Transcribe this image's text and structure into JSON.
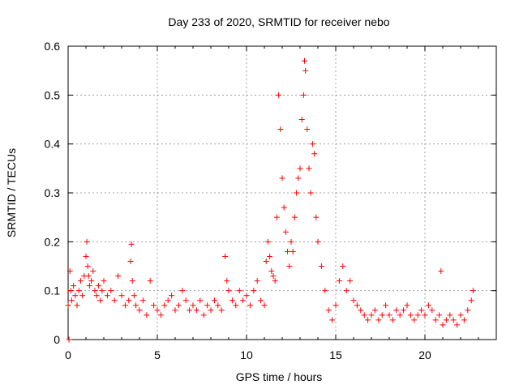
{
  "chart_data": {
    "type": "scatter",
    "title": "Day 233 of 2020, SRMTID for receiver nebo",
    "xlabel": "GPS time / hours",
    "ylabel": "SRMTID / TECUs",
    "xlim": [
      0,
      24
    ],
    "ylim": [
      0,
      0.6
    ],
    "xticks": [
      0,
      5,
      10,
      15,
      20
    ],
    "yticks": [
      0,
      0.1,
      0.2,
      0.3,
      0.4,
      0.5,
      0.6
    ],
    "grid": true,
    "marker": "+",
    "series": [
      {
        "name": "SRMTID",
        "color": "#ff0000",
        "x": [
          0.0,
          0.05,
          0.1,
          0.15,
          0.2,
          0.3,
          0.4,
          0.5,
          0.6,
          0.7,
          0.8,
          0.9,
          1.0,
          1.05,
          1.1,
          1.15,
          1.2,
          1.3,
          1.4,
          1.5,
          1.6,
          1.7,
          1.8,
          1.9,
          2.0,
          2.2,
          2.4,
          2.6,
          2.8,
          3.0,
          3.2,
          3.4,
          3.5,
          3.55,
          3.6,
          3.7,
          3.8,
          4.0,
          4.2,
          4.4,
          4.6,
          4.8,
          5.0,
          5.2,
          5.4,
          5.6,
          5.8,
          6.0,
          6.2,
          6.4,
          6.6,
          6.8,
          7.0,
          7.2,
          7.4,
          7.6,
          7.8,
          8.0,
          8.2,
          8.4,
          8.6,
          8.8,
          8.9,
          9.0,
          9.2,
          9.4,
          9.6,
          9.8,
          10.0,
          10.2,
          10.4,
          10.6,
          10.8,
          11.0,
          11.1,
          11.2,
          11.3,
          11.4,
          11.5,
          11.6,
          11.7,
          11.8,
          11.9,
          12.0,
          12.1,
          12.2,
          12.3,
          12.4,
          12.5,
          12.6,
          12.7,
          12.8,
          12.9,
          13.0,
          13.1,
          13.2,
          13.25,
          13.3,
          13.4,
          13.5,
          13.6,
          13.7,
          13.8,
          13.9,
          14.0,
          14.2,
          14.4,
          14.6,
          14.8,
          15.0,
          15.2,
          15.4,
          15.6,
          15.8,
          16.0,
          16.2,
          16.4,
          16.6,
          16.8,
          17.0,
          17.2,
          17.4,
          17.6,
          17.8,
          18.0,
          18.2,
          18.4,
          18.6,
          18.8,
          19.0,
          19.2,
          19.4,
          19.6,
          19.8,
          20.0,
          20.2,
          20.4,
          20.6,
          20.8,
          20.9,
          21.0,
          21.2,
          21.4,
          21.6,
          21.8,
          22.0,
          22.2,
          22.4,
          22.6,
          22.7
        ],
        "y": [
          0.07,
          0.0,
          0.14,
          0.1,
          0.08,
          0.11,
          0.09,
          0.07,
          0.1,
          0.12,
          0.09,
          0.13,
          0.17,
          0.2,
          0.15,
          0.13,
          0.11,
          0.12,
          0.14,
          0.1,
          0.09,
          0.11,
          0.08,
          0.1,
          0.12,
          0.09,
          0.1,
          0.08,
          0.13,
          0.09,
          0.07,
          0.08,
          0.16,
          0.195,
          0.12,
          0.09,
          0.07,
          0.06,
          0.08,
          0.05,
          0.12,
          0.07,
          0.06,
          0.05,
          0.07,
          0.08,
          0.09,
          0.06,
          0.07,
          0.1,
          0.08,
          0.06,
          0.07,
          0.06,
          0.08,
          0.05,
          0.07,
          0.06,
          0.08,
          0.07,
          0.06,
          0.17,
          0.12,
          0.1,
          0.08,
          0.07,
          0.1,
          0.08,
          0.09,
          0.07,
          0.1,
          0.12,
          0.08,
          0.07,
          0.16,
          0.2,
          0.17,
          0.14,
          0.13,
          0.12,
          0.25,
          0.5,
          0.43,
          0.33,
          0.27,
          0.22,
          0.18,
          0.15,
          0.2,
          0.18,
          0.25,
          0.3,
          0.33,
          0.35,
          0.45,
          0.5,
          0.57,
          0.55,
          0.43,
          0.35,
          0.3,
          0.4,
          0.38,
          0.25,
          0.2,
          0.15,
          0.1,
          0.06,
          0.04,
          0.07,
          0.12,
          0.15,
          0.1,
          0.12,
          0.08,
          0.07,
          0.06,
          0.05,
          0.04,
          0.05,
          0.06,
          0.04,
          0.05,
          0.07,
          0.05,
          0.04,
          0.06,
          0.05,
          0.06,
          0.07,
          0.05,
          0.04,
          0.05,
          0.06,
          0.05,
          0.07,
          0.06,
          0.04,
          0.05,
          0.14,
          0.03,
          0.04,
          0.05,
          0.04,
          0.03,
          0.05,
          0.04,
          0.06,
          0.08,
          0.1
        ]
      }
    ]
  }
}
